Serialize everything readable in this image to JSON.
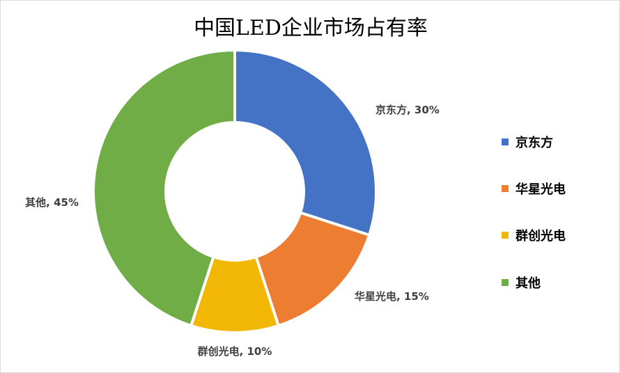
{
  "chart_data": {
    "type": "pie",
    "variant": "doughnut",
    "title": "中国LED企业市场占有率",
    "legend_position": "right",
    "slices": [
      {
        "name": "京东方",
        "value": 30,
        "label": "京东方, 30%",
        "color": "#4472C4"
      },
      {
        "name": "华星光电",
        "value": 15,
        "label": "华星光电, 15%",
        "color": "#ED7D31"
      },
      {
        "name": "群创光电",
        "value": 10,
        "label": "群创光电, 10%",
        "color": "#F2B705"
      },
      {
        "name": "其他",
        "value": 45,
        "label": "其他, 45%",
        "color": "#70AD47"
      }
    ]
  }
}
